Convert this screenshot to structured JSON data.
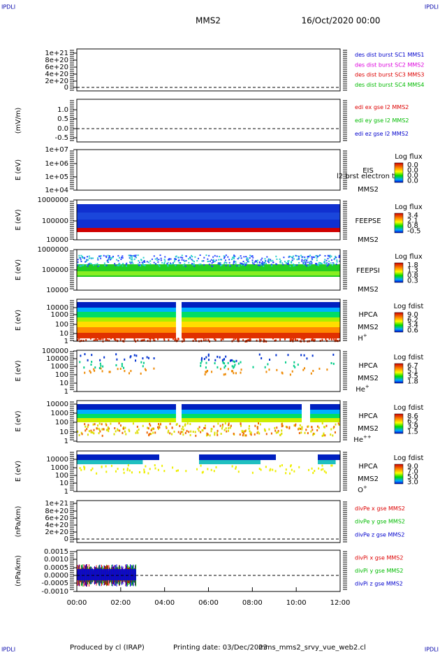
{
  "header": {
    "corner_left": "IPDLI",
    "corner_right": "IPDLI",
    "spacecraft": "MMS2",
    "date": "16/Oct/2020 00:00"
  },
  "footer": {
    "corner_left": "IPDLI",
    "corner_right": "IPDLI",
    "credit": "Produced by cl (IRAP)",
    "printing": "Printing date: 03/Dec/2023",
    "file": "mms_mms2_srvy_vue_web2.cl"
  },
  "xticks": [
    "00:00",
    "02:00",
    "04:00",
    "06:00",
    "08:00",
    "10:00",
    "12:00"
  ],
  "panels": [
    {
      "yticks": [
        "1e+21",
        "8e+20",
        "6e+20",
        "4e+20",
        "2e+20",
        "0"
      ],
      "legend": [
        {
          "text": "des dist burst SC1 MMS1",
          "color": "#0000cc"
        },
        {
          "text": "des dist burst SC2 MMS2",
          "color": "#dd00dd"
        },
        {
          "text": "des dist burst SC3 MMS3",
          "color": "#dd0000"
        },
        {
          "text": "des dist burst SC4 MMS4",
          "color": "#00bb00"
        }
      ]
    },
    {
      "ylabel": "(mV/m)",
      "yticks": [
        "1.0",
        "0.5",
        "0.0",
        "-0.5"
      ],
      "legend": [
        {
          "text": "edi ex gse l2 MMS2",
          "color": "#dd0000"
        },
        {
          "text": "edi ey gse l2 MMS2",
          "color": "#00bb00"
        },
        {
          "text": "edi ez gse l2 MMS2",
          "color": "#0000cc"
        }
      ]
    },
    {
      "ylabel": "E (eV)",
      "yticks": [
        "1e+07",
        "1e+06",
        "1e+05",
        "1e+04"
      ],
      "overlay": "l2 brst electron to",
      "side": [
        "EIS",
        "MMS2"
      ],
      "colorbar": {
        "title": "Log flux",
        "labels": [
          "0.0",
          "0.0",
          "0.0",
          "0.0"
        ]
      }
    },
    {
      "ylabel": "E (eV)",
      "yticks": [
        "1000000",
        "100000",
        "10000"
      ],
      "side": [
        "FEEPSE",
        "MMS2"
      ],
      "colorbar": {
        "title": "Log flux",
        "labels": [
          "3.4",
          "2.1",
          "0.8",
          "-0.5"
        ]
      }
    },
    {
      "ylabel": "E (eV)",
      "yticks": [
        "1000000",
        "100000",
        "10000"
      ],
      "side": [
        "FEEPSI",
        "MMS2"
      ],
      "colorbar": {
        "title": "Log flux",
        "labels": [
          "1.8",
          "1.3",
          "0.8",
          "0.3"
        ]
      }
    },
    {
      "ylabel": "E (eV)",
      "yticks": [
        "10000",
        "1000",
        "100",
        "10",
        "1"
      ],
      "side": [
        "HPCA",
        "MMS2"
      ],
      "species": {
        "base": "H",
        "charge": "+"
      },
      "colorbar": {
        "title": "Log fdist",
        "labels": [
          "9.0",
          "6.2",
          "3.4",
          "0.6"
        ]
      }
    },
    {
      "ylabel": "E (eV)",
      "yticks": [
        "100000",
        "10000",
        "1000",
        "100",
        "10",
        "1"
      ],
      "side": [
        "HPCA",
        "MMS2"
      ],
      "species": {
        "base": "He",
        "charge": "+"
      },
      "colorbar": {
        "title": "Log fdist",
        "labels": [
          "6.7",
          "5.1",
          "3.5",
          "1.8"
        ]
      }
    },
    {
      "ylabel": "E (eV)",
      "yticks": [
        "10000",
        "1000",
        "100",
        "10",
        "1"
      ],
      "side": [
        "HPCA",
        "MMS2"
      ],
      "species": {
        "base": "He",
        "charge": "++"
      },
      "colorbar": {
        "title": "Log fdist",
        "labels": [
          "8.6",
          "6.2",
          "3.9",
          "1.5"
        ]
      }
    },
    {
      "ylabel": "E (eV)",
      "yticks": [
        "10000",
        "1000",
        "100",
        "10",
        "1"
      ],
      "side": [
        "HPCA",
        "MMS2"
      ],
      "species": {
        "base": "O",
        "charge": "+"
      },
      "colorbar": {
        "title": "Log fdist",
        "labels": [
          "9.0",
          "7.0",
          "5.0",
          "3.0"
        ]
      }
    },
    {
      "ylabel": "(nPa/km)",
      "yticks": [
        "1e+21",
        "8e+20",
        "6e+20",
        "4e+20",
        "2e+20",
        "0"
      ],
      "legend": [
        {
          "text": "divPe x gse MMS2",
          "color": "#dd0000"
        },
        {
          "text": "divPe y gse MMS2",
          "color": "#00bb00"
        },
        {
          "text": "divPe z gse MMS2",
          "color": "#0000cc"
        }
      ]
    },
    {
      "ylabel": "(nPa/km)",
      "yticks": [
        "0.0015",
        "0.0010",
        "0.0005",
        "0.0000",
        "-0.0005",
        "-0.0010"
      ],
      "legend": [
        {
          "text": "divPi x gse MMS2",
          "color": "#dd0000"
        },
        {
          "text": "divPi y gse MMS2",
          "color": "#00bb00"
        },
        {
          "text": "divPi z gse MMS2",
          "color": "#0000cc"
        }
      ]
    }
  ]
}
